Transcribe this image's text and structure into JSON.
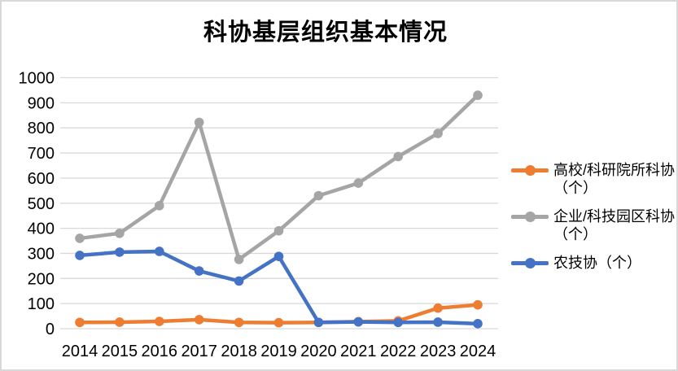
{
  "window": {
    "background": "#ffffff",
    "border_color": "#d9d9d9"
  },
  "chart_data": {
    "type": "line",
    "title": "科协基层组织基本情况",
    "categories": [
      "2014",
      "2015",
      "2016",
      "2017",
      "2018",
      "2019",
      "2020",
      "2021",
      "2022",
      "2023",
      "2024"
    ],
    "series": [
      {
        "name": "高校/科研院所科协（个）",
        "color": "#ED7D31",
        "values": [
          25,
          26,
          29,
          36,
          25,
          24,
          25,
          28,
          31,
          82,
          95
        ]
      },
      {
        "name": "企业/科技园区科协（个）",
        "color": "#A5A5A5",
        "values": [
          360,
          380,
          490,
          822,
          276,
          390,
          530,
          580,
          686,
          778,
          930
        ]
      },
      {
        "name": "农技协（个）",
        "color": "#4472C4",
        "values": [
          292,
          305,
          308,
          230,
          190,
          288,
          25,
          27,
          25,
          26,
          20
        ]
      }
    ],
    "xlabel": "",
    "ylabel": "",
    "ylim": [
      0,
      1000
    ],
    "ytick_step": 100,
    "grid": true,
    "gridline_color": "#D9D9D9",
    "axis_text_color": "#000000",
    "legend_position": "right"
  }
}
